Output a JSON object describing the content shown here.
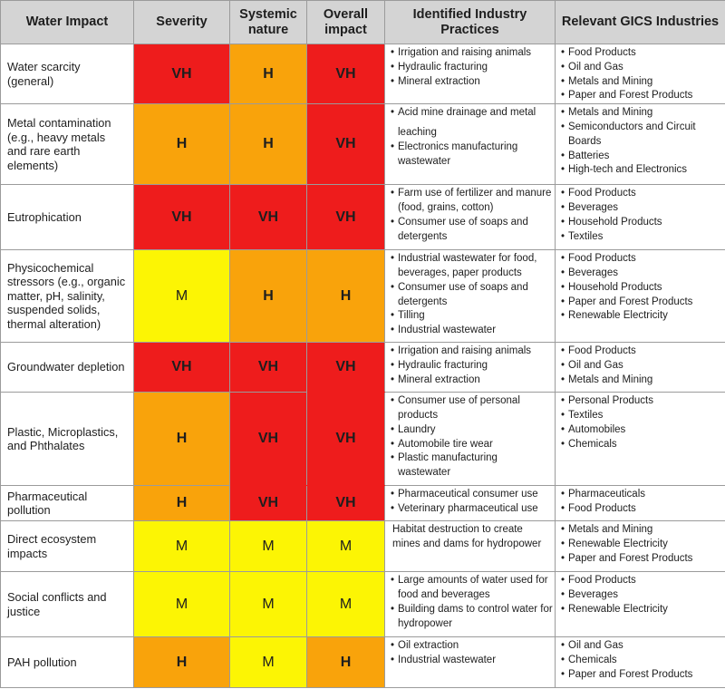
{
  "headers": {
    "impact": "Water Impact",
    "severity": "Severity",
    "systemic": "Systemic nature",
    "overall": "Overall impact",
    "practices": "Identified Industry Practices",
    "industries": "Relevant GICS Industries"
  },
  "rating_colors": {
    "VH": "#ee1c1c",
    "H": "#f9a30b",
    "M": "#fcf504",
    "header": "#d4d4d4"
  },
  "rows": [
    {
      "impact": "Water scarcity (general)",
      "severity": "VH",
      "systemic": "H",
      "overall": "VH",
      "practices": [
        "Irrigation and raising animals",
        "Hydraulic fracturing",
        "Mineral extraction"
      ],
      "industries": [
        "Food Products",
        "Oil and Gas",
        "Metals and Mining",
        "Paper and Forest Products"
      ]
    },
    {
      "impact": "Metal contamination (e.g., heavy metals and rare earth elements)",
      "severity": "H",
      "systemic": "H",
      "overall": "VH",
      "practices": [
        "Acid mine drainage and metal",
        "leaching",
        "Electronics manufacturing wastewater"
      ],
      "industries": [
        "Metals and Mining",
        "Semiconductors and Circuit Boards",
        "Batteries",
        "High-tech and Electronics"
      ]
    },
    {
      "impact": "Eutrophication",
      "severity": "VH",
      "systemic": "VH",
      "overall": "VH",
      "practices": [
        "Farm use of fertilizer and manure (food, grains, cotton)",
        "Consumer use of soaps and detergents"
      ],
      "industries": [
        "Food Products",
        "Beverages",
        "Household Products",
        "Textiles"
      ]
    },
    {
      "impact": "Physicochemical stressors (e.g., organic matter, pH, salinity, suspended solids, thermal alteration)",
      "severity": "M",
      "systemic": "H",
      "overall": "H",
      "practices": [
        "Industrial wastewater for food, beverages, paper products",
        "Consumer use of soaps and detergents",
        "Tilling",
        "Industrial wastewater"
      ],
      "industries": [
        "Food Products",
        "Beverages",
        "Household Products",
        "Paper and Forest Products",
        "Renewable Electricity"
      ]
    },
    {
      "impact": "Groundwater depletion",
      "severity": "VH",
      "systemic": "VH",
      "overall": "VH",
      "practices": [
        "Irrigation and raising animals",
        "Hydraulic fracturing",
        "Mineral extraction"
      ],
      "industries": [
        "Food Products",
        "Oil and Gas",
        "Metals and Mining"
      ]
    },
    {
      "impact": "Plastic, Microplastics, and Phthalates",
      "severity": "H",
      "systemic": "VH",
      "overall": "VH",
      "practices": [
        "Consumer use of personal products",
        "Laundry",
        "Automobile tire wear",
        "Plastic manufacturing wastewater"
      ],
      "industries": [
        "Personal Products",
        "Textiles",
        "Automobiles",
        "Chemicals"
      ]
    },
    {
      "impact": "Pharmaceutical pollution",
      "severity": "H",
      "systemic": "VH",
      "overall": "VH",
      "practices": [
        "Pharmaceutical consumer use",
        "Veterinary pharmaceutical use"
      ],
      "industries": [
        "Pharmaceuticals",
        "Food Products"
      ]
    },
    {
      "impact": "Direct ecosystem impacts",
      "severity": "M",
      "systemic": "M",
      "overall": "M",
      "practices_text": "Habitat destruction to create mines and dams for hydropower",
      "industries": [
        "Metals and Mining",
        "Renewable Electricity",
        "Paper and Forest Products"
      ]
    },
    {
      "impact": "Social conflicts and justice",
      "severity": "M",
      "systemic": "M",
      "overall": "M",
      "practices": [
        "Large amounts of water used for food and beverages",
        "Building dams to control water for hydropower"
      ],
      "industries": [
        "Food Products",
        "Beverages",
        "Renewable Electricity"
      ]
    },
    {
      "impact": "PAH pollution",
      "severity": "H",
      "systemic": "M",
      "overall": "H",
      "practices": [
        "Oil extraction",
        "Industrial wastewater"
      ],
      "industries": [
        "Oil and Gas",
        "Chemicals",
        "Paper and Forest Products"
      ]
    }
  ]
}
